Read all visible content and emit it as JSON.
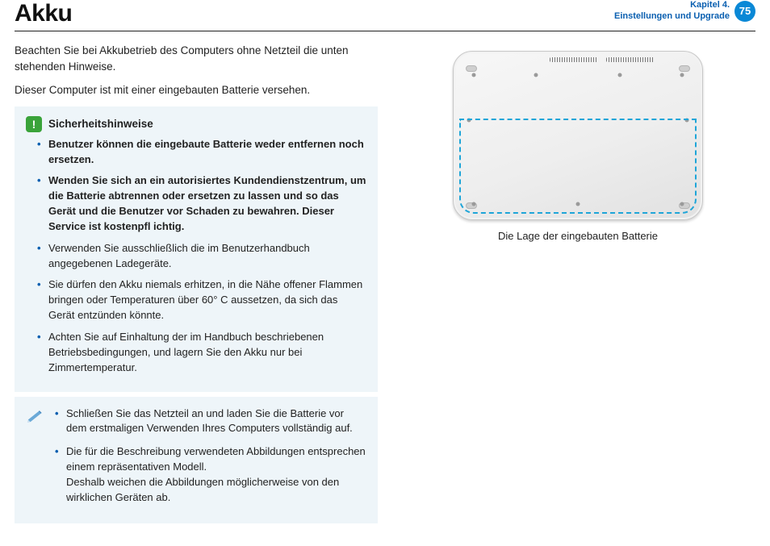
{
  "header": {
    "title": "Akku",
    "chapter_line1": "Kapitel 4.",
    "chapter_line2": "Einstellungen und Upgrade",
    "page_number": "75"
  },
  "intro": {
    "p1": "Beachten Sie bei Akkubetrieb des Computers ohne Netzteil die unten stehenden Hinweise.",
    "p2": "Dieser Computer ist mit einer eingebauten Batterie versehen."
  },
  "safety": {
    "title": "Sicherheitshinweise",
    "items": [
      "Benutzer können die eingebaute Batterie weder entfernen noch ersetzen.",
      "Wenden Sie sich an ein autorisiertes Kundendienstzentrum, um die Batterie abtrennen oder ersetzen zu lassen und so das Gerät und die Benutzer vor Schaden zu bewahren. Dieser Service ist kostenpfl ichtig.",
      "Verwenden Sie ausschließlich die im Benutzerhandbuch angegebenen Ladegeräte.",
      "Sie dürfen den Akku niemals erhitzen, in die Nähe offener Flammen bringen oder Temperaturen über 60° C aussetzen, da sich das Gerät entzünden könnte.",
      "Achten Sie auf Einhaltung der im Handbuch beschriebenen Betriebsbedingungen, und lagern Sie den Akku nur bei Zimmertemperatur."
    ],
    "bold_flags": [
      true,
      true,
      false,
      false,
      false
    ]
  },
  "note": {
    "items": [
      "Schließen Sie das Netzteil an und laden Sie die Batterie vor dem erstmaligen Verwenden Ihres Computers vollständig auf.",
      "Die für die Beschreibung verwendeten Abbildungen entsprechen einem repräsentativen Modell.\nDeshalb weichen die Abbildungen möglicherweise von den wirklichen Geräten ab."
    ]
  },
  "figure": {
    "caption": "Die Lage der eingebauten Batterie",
    "battery_outline_color": "#1ea5d8"
  },
  "colors": {
    "accent": "#0a5fb0",
    "badge": "#0a88d6",
    "box_bg": "#eef5f9",
    "warn_icon_bg": "#3aa33a"
  }
}
